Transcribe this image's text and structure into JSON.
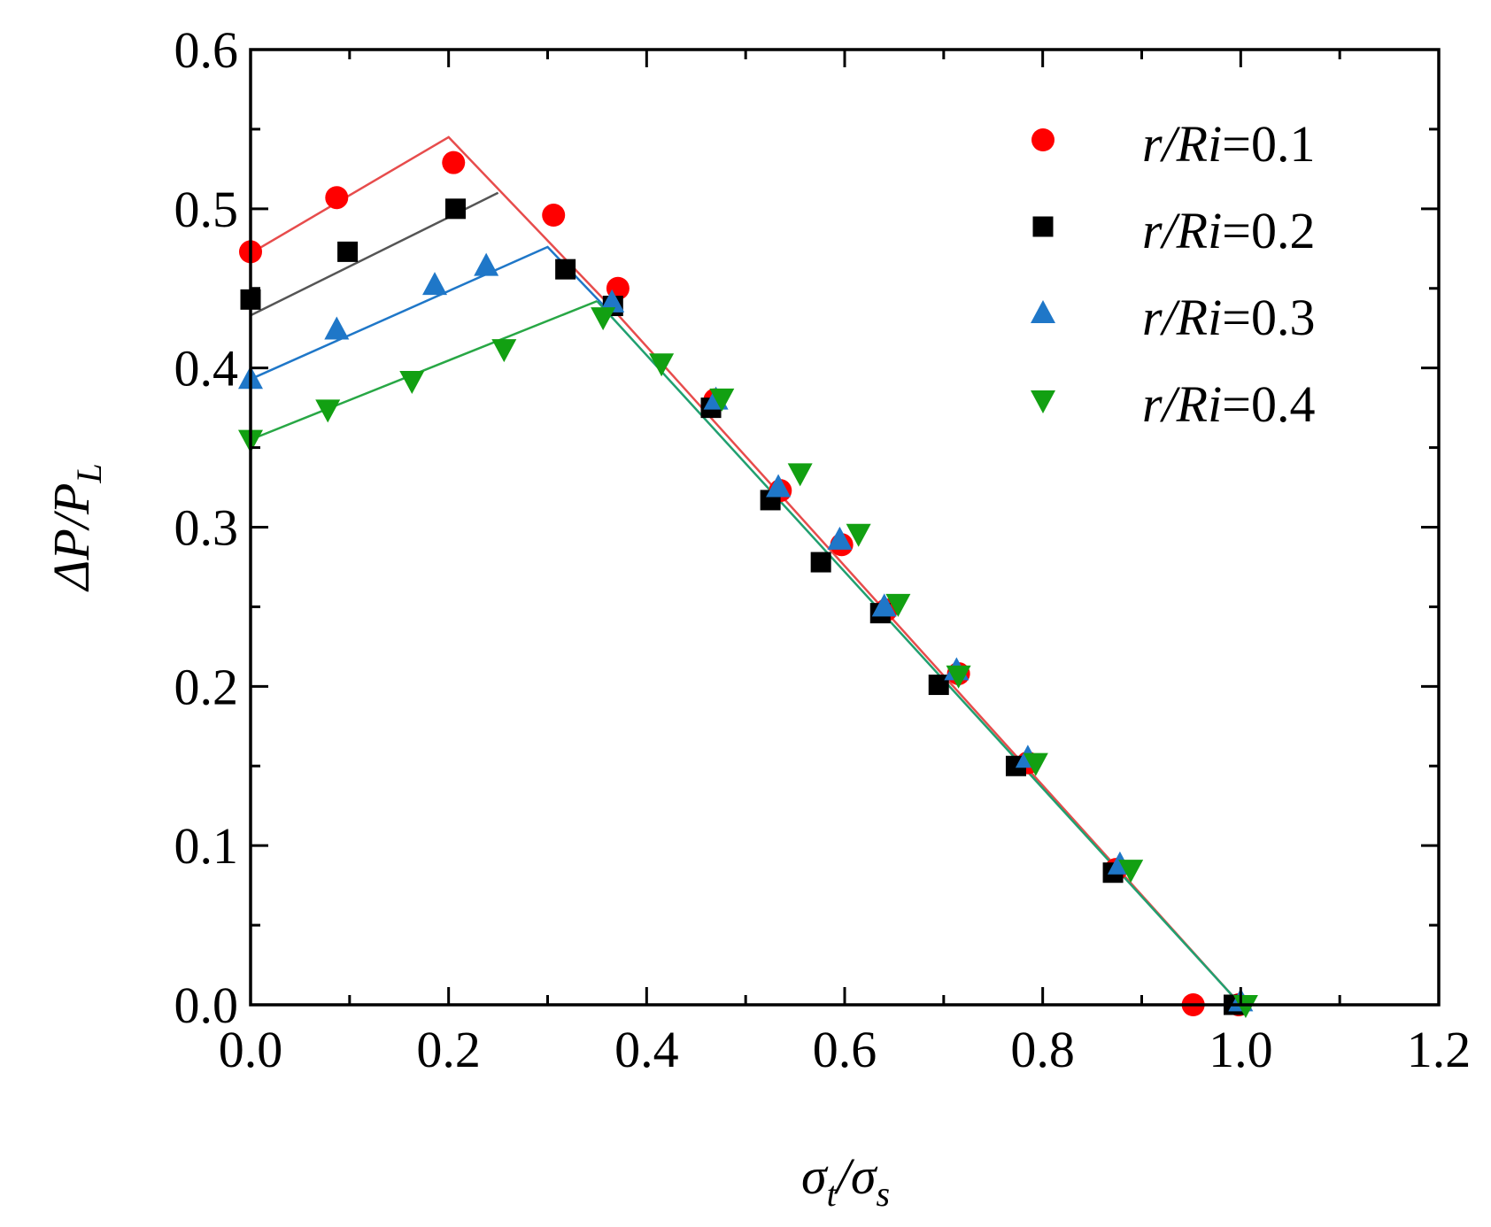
{
  "chart_data": {
    "type": "scatter",
    "title": "",
    "xlabel": {
      "main": "σ",
      "sub1": "t",
      "sep": "/σ",
      "sub2": "s"
    },
    "ylabel": {
      "main": "ΔP/P",
      "sub": "L"
    },
    "xlim": [
      0,
      1.2
    ],
    "ylim": [
      0,
      0.6
    ],
    "xticks": [
      "0.0",
      "0.2",
      "0.4",
      "0.6",
      "0.8",
      "1.0",
      "1.2"
    ],
    "yticks": [
      "0.0",
      "0.1",
      "0.2",
      "0.3",
      "0.4",
      "0.5",
      "0.6"
    ],
    "legend_position": "top-right",
    "series": [
      {
        "name": "r/Ri=0.1",
        "label_italic": "r/Ri",
        "label_value": "=0.1",
        "marker": "circle",
        "color": "#ff0000",
        "points": [
          [
            0.0,
            0.473
          ],
          [
            0.087,
            0.507
          ],
          [
            0.205,
            0.529
          ],
          [
            0.306,
            0.496
          ],
          [
            0.371,
            0.45
          ],
          [
            0.469,
            0.38
          ],
          [
            0.535,
            0.323
          ],
          [
            0.597,
            0.289
          ],
          [
            0.642,
            0.248
          ],
          [
            0.715,
            0.208
          ],
          [
            0.785,
            0.152
          ],
          [
            0.874,
            0.085
          ],
          [
            0.952,
            0.0
          ],
          [
            0.998,
            0.0
          ]
        ],
        "fit": [
          [
            0.0,
            0.472
          ],
          [
            0.2,
            0.545
          ],
          [
            0.36,
            0.441
          ],
          [
            1.0,
            0.0
          ]
        ]
      },
      {
        "name": "r/Ri=0.2",
        "label_italic": "r/Ri",
        "label_value": "=0.2",
        "marker": "square",
        "color": "#000000",
        "points": [
          [
            0.0,
            0.443
          ],
          [
            0.098,
            0.473
          ],
          [
            0.207,
            0.5
          ],
          [
            0.318,
            0.462
          ],
          [
            0.366,
            0.439
          ],
          [
            0.465,
            0.375
          ],
          [
            0.525,
            0.317
          ],
          [
            0.576,
            0.278
          ],
          [
            0.636,
            0.246
          ],
          [
            0.695,
            0.201
          ],
          [
            0.773,
            0.15
          ],
          [
            0.871,
            0.083
          ],
          [
            0.993,
            0.0
          ]
        ],
        "fit": [
          [
            0.0,
            0.433
          ],
          [
            0.25,
            0.51
          ]
        ]
      },
      {
        "name": "r/Ri=0.3",
        "label_italic": "r/Ri",
        "label_value": "=0.3",
        "marker": "triangle-up",
        "color": "#1f77c8",
        "points": [
          [
            0.0,
            0.393
          ],
          [
            0.087,
            0.424
          ],
          [
            0.186,
            0.452
          ],
          [
            0.238,
            0.464
          ],
          [
            0.365,
            0.441
          ],
          [
            0.47,
            0.38
          ],
          [
            0.533,
            0.325
          ],
          [
            0.595,
            0.292
          ],
          [
            0.64,
            0.25
          ],
          [
            0.713,
            0.21
          ],
          [
            0.785,
            0.155
          ],
          [
            0.878,
            0.088
          ],
          [
            1.0,
            0.002
          ]
        ],
        "fit": [
          [
            0.0,
            0.393
          ],
          [
            0.3,
            0.476
          ],
          [
            0.36,
            0.437
          ]
        ]
      },
      {
        "name": "r/Ri=0.4",
        "label_italic": "r/Ri",
        "label_value": "=0.4",
        "marker": "triangle-down",
        "color": "#12a012",
        "points": [
          [
            0.0,
            0.355
          ],
          [
            0.078,
            0.374
          ],
          [
            0.163,
            0.392
          ],
          [
            0.256,
            0.412
          ],
          [
            0.356,
            0.432
          ],
          [
            0.415,
            0.403
          ],
          [
            0.476,
            0.381
          ],
          [
            0.555,
            0.334
          ],
          [
            0.614,
            0.296
          ],
          [
            0.654,
            0.252
          ],
          [
            0.715,
            0.207
          ],
          [
            0.793,
            0.152
          ],
          [
            0.889,
            0.085
          ],
          [
            1.005,
            0.0
          ]
        ],
        "fit": [
          [
            0.0,
            0.355
          ],
          [
            0.35,
            0.442
          ]
        ],
        "fit_descending": [
          [
            0.35,
            0.442
          ],
          [
            1.0,
            0.0
          ]
        ],
        "fit_descending_color": "#20a070"
      }
    ]
  }
}
